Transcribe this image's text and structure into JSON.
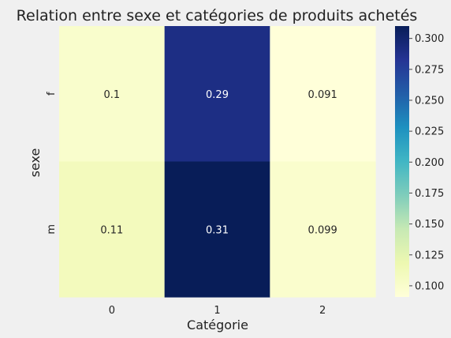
{
  "chart_data": {
    "type": "heatmap",
    "title": "Relation entre sexe et catégories de produits achetés",
    "xlabel": "Catégorie",
    "ylabel": "sexe",
    "x_categories": [
      "0",
      "1",
      "2"
    ],
    "y_categories": [
      "f",
      "m"
    ],
    "values": [
      [
        0.1,
        0.29,
        0.091
      ],
      [
        0.11,
        0.31,
        0.099
      ]
    ],
    "cell_labels": [
      [
        "0.1",
        "0.29",
        "0.091"
      ],
      [
        "0.11",
        "0.31",
        "0.099"
      ]
    ],
    "colormap": "YlGnBu",
    "colorbar": {
      "min": 0.091,
      "max": 0.31,
      "ticks": [
        "0.100",
        "0.125",
        "0.150",
        "0.175",
        "0.200",
        "0.225",
        "0.250",
        "0.275",
        "0.300"
      ]
    },
    "grid": false,
    "legend": "colorbar-right"
  }
}
